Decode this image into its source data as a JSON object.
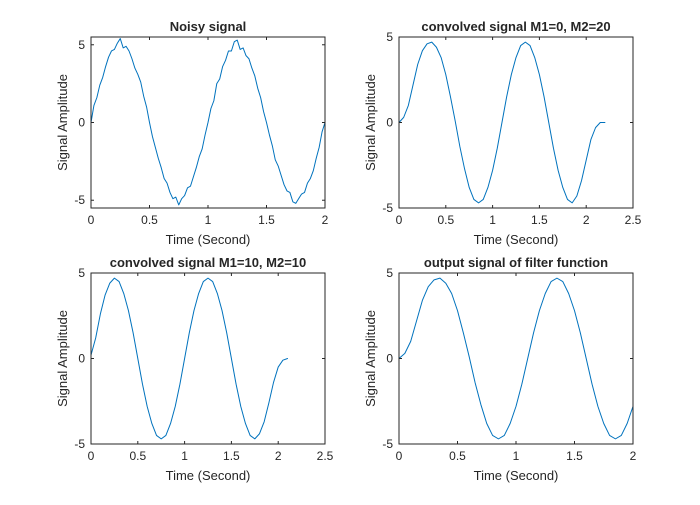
{
  "figure": {
    "background": "#ffffff",
    "axis_color": "#262626",
    "line_color": "#0072BD"
  },
  "chart_data": [
    {
      "type": "line",
      "title": "Noisy signal",
      "xlabel": "Time (Second)",
      "ylabel": "Signal Amplitude",
      "xlim": [
        0,
        2
      ],
      "ylim": [
        -5.5,
        5.5
      ],
      "xticks": [
        0,
        0.5,
        1,
        1.5,
        2
      ],
      "xtick_labels": [
        "0",
        "0.5",
        "1",
        "1.5",
        "2"
      ],
      "yticks": [
        -5,
        0,
        5
      ],
      "ytick_labels": [
        "-5",
        "0",
        "5"
      ],
      "grid": false,
      "series": [
        {
          "x": [
            0,
            0.025,
            0.05,
            0.075,
            0.1,
            0.125,
            0.15,
            0.175,
            0.2,
            0.225,
            0.25,
            0.275,
            0.3,
            0.325,
            0.35,
            0.375,
            0.4,
            0.425,
            0.45,
            0.475,
            0.5,
            0.525,
            0.55,
            0.575,
            0.6,
            0.625,
            0.65,
            0.675,
            0.7,
            0.725,
            0.75,
            0.775,
            0.8,
            0.825,
            0.85,
            0.875,
            0.9,
            0.925,
            0.95,
            0.975,
            1,
            1.025,
            1.05,
            1.075,
            1.1,
            1.125,
            1.15,
            1.175,
            1.2,
            1.225,
            1.25,
            1.275,
            1.3,
            1.325,
            1.35,
            1.375,
            1.4,
            1.425,
            1.45,
            1.475,
            1.5,
            1.525,
            1.55,
            1.575,
            1.6,
            1.625,
            1.65,
            1.675,
            1.7,
            1.725,
            1.75,
            1.775,
            1.8,
            1.825,
            1.85,
            1.875,
            1.9,
            1.925,
            1.95,
            1.975,
            2
          ],
          "y": [
            0.0,
            1.1,
            1.6,
            2.4,
            2.9,
            3.6,
            4.2,
            4.6,
            4.7,
            5.1,
            5.4,
            4.8,
            4.9,
            4.6,
            4.1,
            3.5,
            3.1,
            2.6,
            1.7,
            1.0,
            0.0,
            -0.9,
            -1.6,
            -2.3,
            -2.9,
            -3.6,
            -3.9,
            -4.5,
            -4.9,
            -4.8,
            -5.3,
            -4.9,
            -4.7,
            -4.2,
            -4.1,
            -3.5,
            -2.9,
            -2.2,
            -1.7,
            -0.8,
            0.0,
            0.9,
            1.4,
            2.5,
            2.8,
            3.6,
            4.0,
            4.6,
            4.6,
            5.2,
            5.3,
            4.7,
            4.8,
            4.3,
            4.1,
            3.5,
            3.0,
            2.2,
            1.6,
            0.7,
            0.0,
            -0.8,
            -1.5,
            -2.4,
            -2.8,
            -3.4,
            -4.0,
            -4.4,
            -4.5,
            -5.1,
            -5.2,
            -4.9,
            -4.6,
            -4.5,
            -3.9,
            -3.6,
            -3.1,
            -2.3,
            -1.6,
            -0.6,
            0.0
          ]
        }
      ]
    },
    {
      "type": "line",
      "title": "convolved signal M1=0, M2=20",
      "xlabel": "Time (Second)",
      "ylabel": "Signal Amplitude",
      "xlim": [
        0,
        2.5
      ],
      "ylim": [
        -5,
        5
      ],
      "xticks": [
        0,
        0.5,
        1,
        1.5,
        2,
        2.5
      ],
      "xtick_labels": [
        "0",
        "0.5",
        "1",
        "1.5",
        "2",
        "2.5"
      ],
      "yticks": [
        -5,
        0,
        5
      ],
      "ytick_labels": [
        "-5",
        "0",
        "5"
      ],
      "grid": false,
      "series": [
        {
          "x": [
            0,
            0.05,
            0.1,
            0.15,
            0.2,
            0.25,
            0.3,
            0.35,
            0.4,
            0.45,
            0.5,
            0.55,
            0.6,
            0.65,
            0.7,
            0.75,
            0.8,
            0.85,
            0.9,
            0.95,
            1.0,
            1.05,
            1.1,
            1.15,
            1.2,
            1.25,
            1.3,
            1.35,
            1.4,
            1.45,
            1.5,
            1.55,
            1.6,
            1.65,
            1.7,
            1.75,
            1.8,
            1.85,
            1.9,
            1.95,
            2.0,
            2.05,
            2.1,
            2.15,
            2.2
          ],
          "y": [
            0.0,
            0.3,
            1.0,
            2.2,
            3.4,
            4.2,
            4.6,
            4.7,
            4.4,
            3.8,
            2.8,
            1.5,
            0.1,
            -1.4,
            -2.7,
            -3.8,
            -4.5,
            -4.7,
            -4.5,
            -3.8,
            -2.8,
            -1.5,
            0.0,
            1.5,
            2.8,
            3.8,
            4.5,
            4.7,
            4.5,
            3.8,
            2.8,
            1.5,
            0.0,
            -1.5,
            -2.8,
            -3.8,
            -4.5,
            -4.7,
            -4.3,
            -3.4,
            -2.2,
            -1.0,
            -0.3,
            0.0,
            0.0
          ]
        }
      ]
    },
    {
      "type": "line",
      "title": "convolved signal M1=10, M2=10",
      "xlabel": "Time (Second)",
      "ylabel": "Signal Amplitude",
      "xlim": [
        0,
        2.5
      ],
      "ylim": [
        -5,
        5
      ],
      "xticks": [
        0,
        0.5,
        1,
        1.5,
        2,
        2.5
      ],
      "xtick_labels": [
        "0",
        "0.5",
        "1",
        "1.5",
        "2",
        "2.5"
      ],
      "yticks": [
        -5,
        0,
        5
      ],
      "ytick_labels": [
        "-5",
        "0",
        "5"
      ],
      "grid": false,
      "series": [
        {
          "x": [
            0,
            0.05,
            0.1,
            0.15,
            0.2,
            0.25,
            0.3,
            0.35,
            0.4,
            0.45,
            0.5,
            0.55,
            0.6,
            0.65,
            0.7,
            0.75,
            0.8,
            0.85,
            0.9,
            0.95,
            1.0,
            1.05,
            1.1,
            1.15,
            1.2,
            1.25,
            1.3,
            1.35,
            1.4,
            1.45,
            1.5,
            1.55,
            1.6,
            1.65,
            1.7,
            1.75,
            1.8,
            1.85,
            1.9,
            1.95,
            2.0,
            2.05,
            2.1
          ],
          "y": [
            0.2,
            1.2,
            2.6,
            3.7,
            4.4,
            4.7,
            4.5,
            3.8,
            2.8,
            1.5,
            0.0,
            -1.5,
            -2.8,
            -3.8,
            -4.5,
            -4.7,
            -4.5,
            -3.8,
            -2.8,
            -1.5,
            0.0,
            1.5,
            2.8,
            3.8,
            4.5,
            4.7,
            4.5,
            3.8,
            2.8,
            1.5,
            0.0,
            -1.5,
            -2.8,
            -3.8,
            -4.5,
            -4.7,
            -4.4,
            -3.7,
            -2.6,
            -1.4,
            -0.5,
            -0.1,
            0.0
          ]
        }
      ]
    },
    {
      "type": "line",
      "title": "output signal of filter function",
      "xlabel": "Time (Second)",
      "ylabel": "Signal Amplitude",
      "xlim": [
        0,
        2
      ],
      "ylim": [
        -5,
        5
      ],
      "xticks": [
        0,
        0.5,
        1,
        1.5,
        2
      ],
      "xtick_labels": [
        "0",
        "0.5",
        "1",
        "1.5",
        "2"
      ],
      "yticks": [
        -5,
        0,
        5
      ],
      "ytick_labels": [
        "-5",
        "0",
        "5"
      ],
      "grid": false,
      "series": [
        {
          "x": [
            0,
            0.05,
            0.1,
            0.15,
            0.2,
            0.25,
            0.3,
            0.35,
            0.4,
            0.45,
            0.5,
            0.55,
            0.6,
            0.65,
            0.7,
            0.75,
            0.8,
            0.85,
            0.9,
            0.95,
            1.0,
            1.05,
            1.1,
            1.15,
            1.2,
            1.25,
            1.3,
            1.35,
            1.4,
            1.45,
            1.5,
            1.55,
            1.6,
            1.65,
            1.7,
            1.75,
            1.8,
            1.85,
            1.9,
            1.95,
            2.0
          ],
          "y": [
            0.0,
            0.3,
            1.0,
            2.2,
            3.4,
            4.2,
            4.6,
            4.7,
            4.4,
            3.8,
            2.8,
            1.5,
            0.1,
            -1.4,
            -2.7,
            -3.8,
            -4.5,
            -4.7,
            -4.5,
            -3.8,
            -2.8,
            -1.5,
            0.0,
            1.5,
            2.8,
            3.8,
            4.5,
            4.7,
            4.5,
            3.8,
            2.8,
            1.5,
            0.0,
            -1.5,
            -2.8,
            -3.8,
            -4.5,
            -4.7,
            -4.5,
            -3.8,
            -2.8
          ]
        }
      ]
    }
  ]
}
